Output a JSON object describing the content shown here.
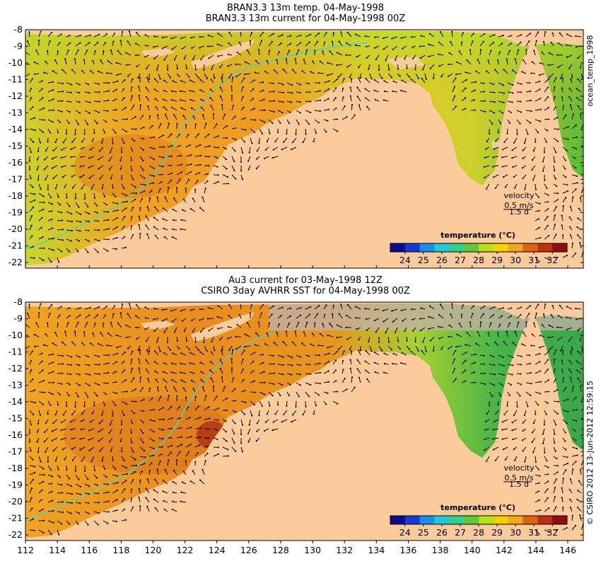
{
  "panels": [
    {
      "title_line1": "BRAN3.3 13m temp. 04-May-1998",
      "title_line2": "BRAN3.3 13m current for 04-May-1998 00Z",
      "velocity_label": "velocity",
      "velocity_scale": "0.5 m/s",
      "velocity_time": "1.5 d",
      "colorbar_title": "temperature (°C)"
    },
    {
      "title_line1": "Au3 current for 03-May-1998 12Z",
      "title_line2": "CSIRO 3day AVHRR SST for 04-May-1998 00Z",
      "velocity_label": "velocity",
      "velocity_scale": "0.5 m/s",
      "velocity_time": "1.5 d",
      "colorbar_title": "temperature (°C)"
    }
  ],
  "side_label_top": "ocean_temp_1998",
  "side_label_bottom": "© CSIRO 2012  13-Jun-2012 12:59:15",
  "colorbar_ticks": [
    "24",
    "25",
    "26",
    "27",
    "28",
    "29",
    "30",
    "31",
    "32"
  ],
  "colorbar_colors": [
    "#0d0d8c",
    "#1838d8",
    "#1d8ee8",
    "#22c8d8",
    "#2ed190",
    "#5ecb3c",
    "#b6dd1e",
    "#f2d200",
    "#f3a51c",
    "#db6414",
    "#bb3212",
    "#8e0e10"
  ],
  "x_ticks": [
    "112",
    "114",
    "116",
    "118",
    "120",
    "122",
    "124",
    "126",
    "128",
    "130",
    "132",
    "134",
    "136",
    "138",
    "140",
    "142",
    "144",
    "146"
  ],
  "y_ticks": [
    "-8",
    "-9",
    "-10",
    "-11",
    "-12",
    "-13",
    "-14",
    "-15",
    "-16",
    "-17",
    "-18",
    "-19",
    "-20",
    "-21",
    "-22"
  ],
  "map_colors": {
    "land": "#fbcb9c",
    "no_data": "#c0b0a3",
    "warm": "#e8961e",
    "mid": "#f0b22a",
    "cool": "#b8d528",
    "cold": "#4ec13a",
    "isobath": "#40d8c8"
  }
}
